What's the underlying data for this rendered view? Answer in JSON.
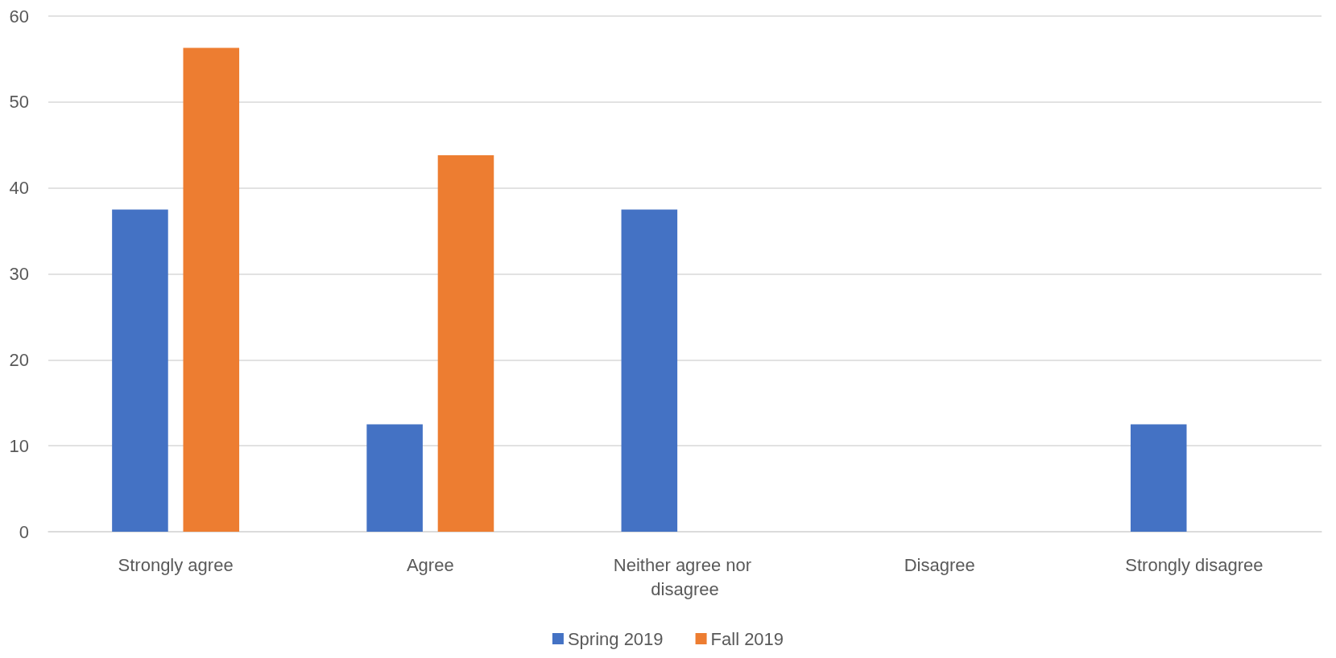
{
  "chart_data": {
    "type": "bar",
    "categories": [
      "Strongly agree",
      "Agree",
      "Neither agree nor disagree",
      "Disagree",
      "Strongly disagree"
    ],
    "series": [
      {
        "name": "Spring 2019",
        "color": "#4472c4",
        "values": [
          37.5,
          12.5,
          37.5,
          0,
          12.5
        ]
      },
      {
        "name": "Fall 2019",
        "color": "#ed7d31",
        "values": [
          56.3,
          43.8,
          0,
          0,
          0
        ]
      }
    ],
    "ylim": [
      0,
      60
    ],
    "yticks": [
      0,
      10,
      20,
      30,
      40,
      50,
      60
    ],
    "grid": "y",
    "legend": "bottom"
  }
}
